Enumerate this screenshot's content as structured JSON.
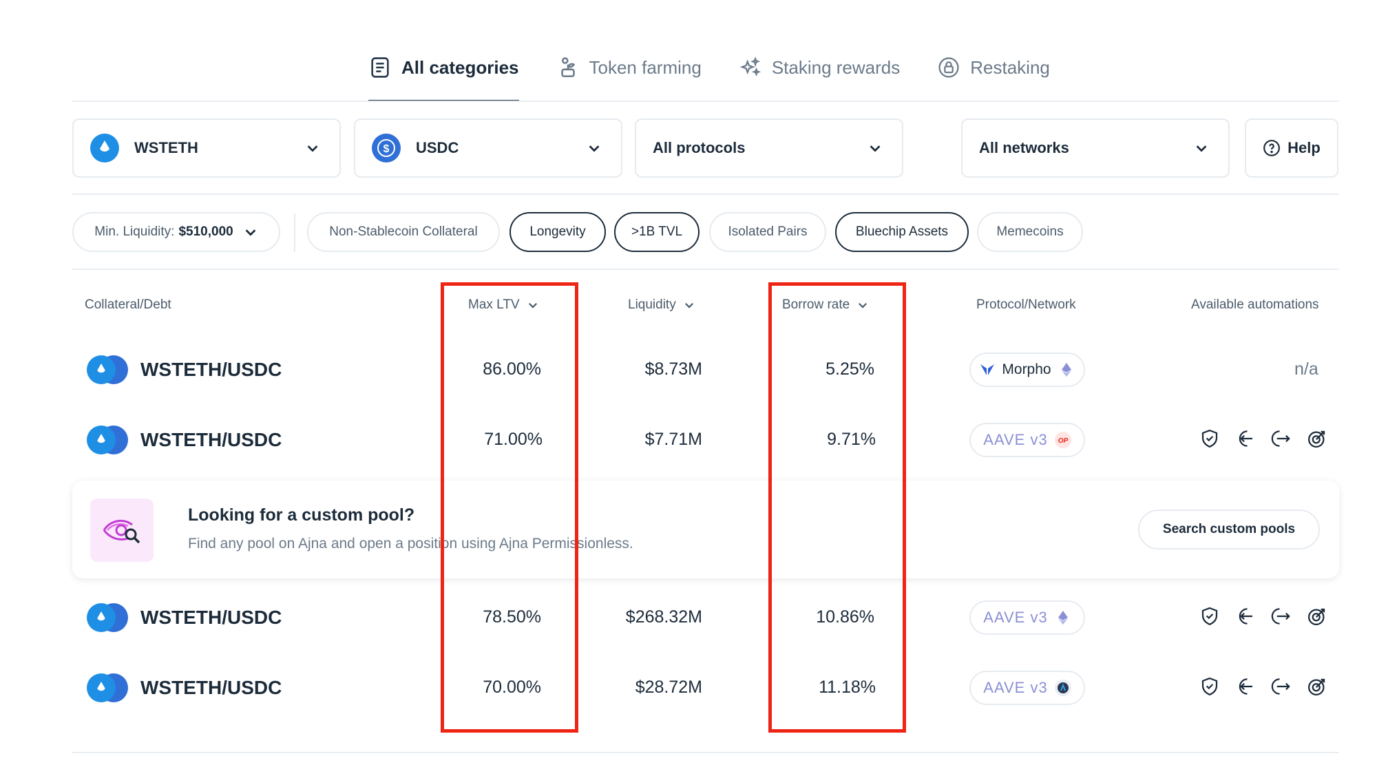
{
  "tabs": [
    {
      "label": "All categories",
      "icon": "document-list-icon",
      "active": true
    },
    {
      "label": "Token farming",
      "icon": "plant-icon"
    },
    {
      "label": "Staking rewards",
      "icon": "sparkles-icon"
    },
    {
      "label": "Restaking",
      "icon": "lock-cycle-icon"
    }
  ],
  "filters": {
    "collateral": "WSTETH",
    "debt": "USDC",
    "protocols": "All protocols",
    "networks": "All networks",
    "help": "Help"
  },
  "chips": {
    "min_liquidity_label": "Min. Liquidity:",
    "min_liquidity_value": "$510,000",
    "items": [
      "Non-Stablecoin Collateral",
      "Longevity",
      ">1B TVL",
      "Isolated Pairs",
      "Bluechip Assets",
      "Memecoins"
    ],
    "selected": [
      "Longevity",
      ">1B TVL",
      "Bluechip Assets"
    ]
  },
  "table": {
    "headers": {
      "pair": "Collateral/Debt",
      "ltv": "Max LTV",
      "liquidity": "Liquidity",
      "borrow": "Borrow rate",
      "protocol": "Protocol/Network",
      "automations": "Available automations"
    },
    "rows": [
      {
        "pair": "WSTETH/USDC",
        "ltv": "86.00%",
        "liquidity": "$8.73M",
        "borrow": "5.25%",
        "protocol": "Morpho",
        "network": "ethereum",
        "automations": "n/a"
      },
      {
        "pair": "WSTETH/USDC",
        "ltv": "71.00%",
        "liquidity": "$7.71M",
        "borrow": "9.71%",
        "protocol": "AAVE v3",
        "network": "optimism",
        "automations": ""
      },
      {
        "pair": "WSTETH/USDC",
        "ltv": "78.50%",
        "liquidity": "$268.32M",
        "borrow": "10.86%",
        "protocol": "AAVE v3",
        "network": "ethereum",
        "automations": ""
      },
      {
        "pair": "WSTETH/USDC",
        "ltv": "70.00%",
        "liquidity": "$28.72M",
        "borrow": "11.18%",
        "protocol": "AAVE v3",
        "network": "arbitrum",
        "automations": ""
      }
    ]
  },
  "banner": {
    "title": "Looking for a custom pool?",
    "subtitle": "Find any pool on Ajna and open a position using Ajna Permissionless.",
    "button": "Search custom pools"
  },
  "colors": {
    "highlight": "#ee2414",
    "text": "#1c2b3a",
    "muted": "#6b7a8a",
    "border": "#e6ebf0"
  }
}
